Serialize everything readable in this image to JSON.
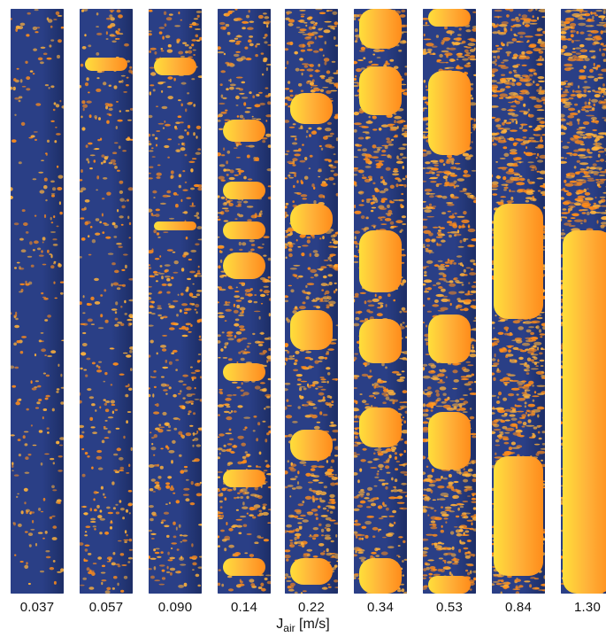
{
  "figure": {
    "strips": [
      {
        "label": "0.037",
        "bubble_fraction": 0.0
      },
      {
        "label": "0.057",
        "bubble_fraction": 0.02
      },
      {
        "label": "0.090",
        "bubble_fraction": 0.04
      },
      {
        "label": "0.14",
        "bubble_fraction": 0.06
      },
      {
        "label": "0.22",
        "bubble_fraction": 0.1
      },
      {
        "label": "0.34",
        "bubble_fraction": 0.22
      },
      {
        "label": "0.53",
        "bubble_fraction": 0.3
      },
      {
        "label": "0.84",
        "bubble_fraction": 0.45
      },
      {
        "label": "1.30",
        "bubble_fraction": 0.55
      }
    ],
    "axis_title_main": "J",
    "axis_title_sub": "air",
    "axis_title_unit": " [m/s]",
    "colors": {
      "liquid": "#2a3f86",
      "liquid_dark": "#1d2e66",
      "gas_light": "#ffb23a",
      "gas_mid": "#ff8c1a",
      "gas_hot": "#ffdf3a",
      "label": "#111111"
    }
  }
}
